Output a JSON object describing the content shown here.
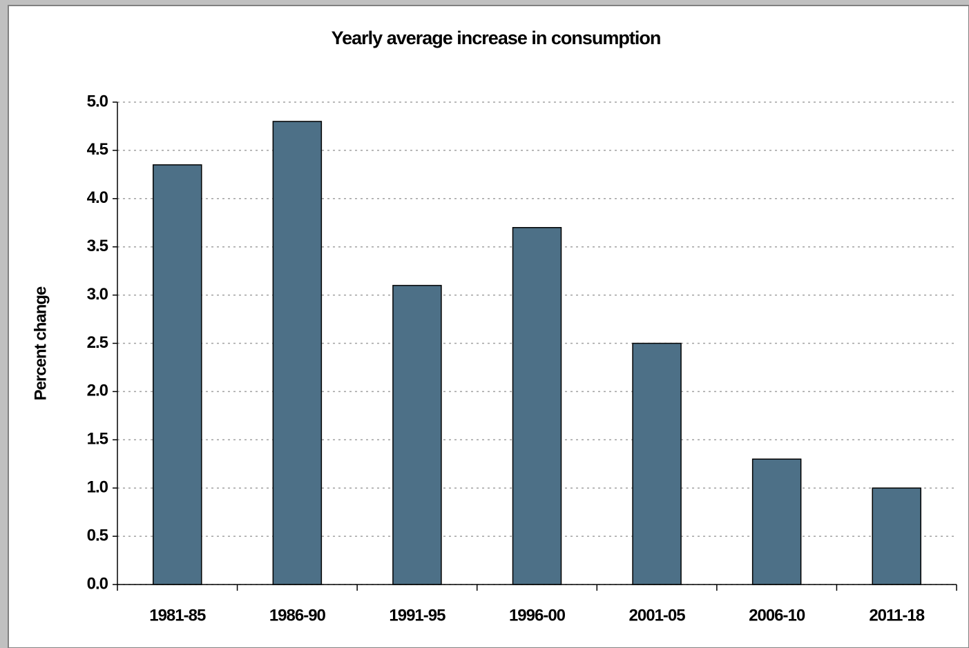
{
  "chart_data": {
    "type": "bar",
    "title": "Yearly average increase in consumption",
    "y_label": "Percent change",
    "categories": [
      "1981-85",
      "1986-90",
      "1991-95",
      "1996-00",
      "2001-05",
      "2006-10",
      "2011-18"
    ],
    "values": [
      4.35,
      4.8,
      3.1,
      3.7,
      2.5,
      1.3,
      1.0
    ],
    "color": "#4d7087",
    "ylim": [
      0,
      5
    ],
    "yticks": [
      {
        "value": 0,
        "label": "0.0"
      },
      0.5,
      {
        "value": 1,
        "label": "1.0"
      },
      1.5,
      {
        "value": 2,
        "label": "2.0"
      },
      2.5,
      {
        "value": 3,
        "label": "3.0"
      },
      3.5,
      {
        "value": 4,
        "label": "4.0"
      },
      4.5,
      {
        "value": 5,
        "label": "5.0"
      }
    ],
    "grid": true
  }
}
